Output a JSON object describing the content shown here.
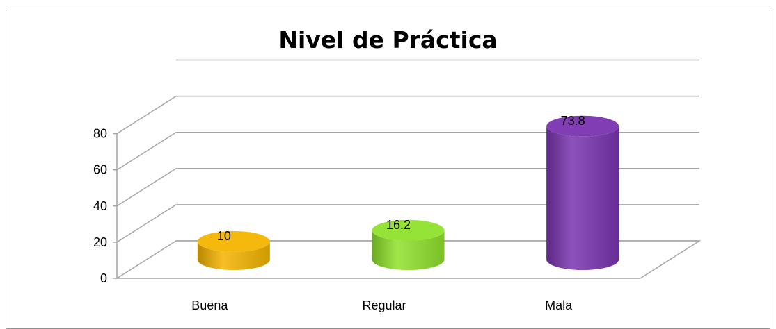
{
  "chart_data": {
    "type": "bar",
    "style": "3d-cylinder",
    "title": "Nivel de Práctica",
    "xlabel": "",
    "ylabel": "",
    "categories": [
      "Buena",
      "Regular",
      "Mala"
    ],
    "values": [
      10,
      16.2,
      73.8
    ],
    "data_labels": [
      "10",
      "16.2",
      "73.8"
    ],
    "bar_colors": [
      "#f4b400",
      "#8fe22b",
      "#7a34b0"
    ],
    "ylim": [
      0,
      80
    ],
    "yticks": [
      "0",
      "20",
      "40",
      "60",
      "80"
    ],
    "grid": true,
    "legend": "none"
  }
}
